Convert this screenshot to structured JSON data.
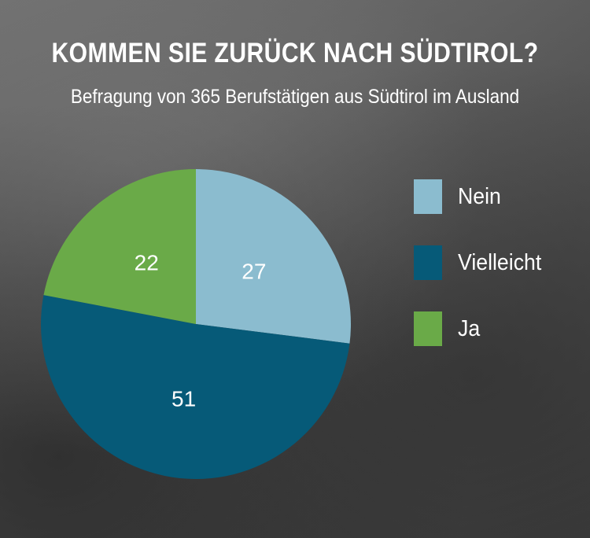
{
  "header": {
    "title": "KOMMEN SIE ZURÜCK NACH SÜDTIROL?",
    "subtitle": "Befragung von 365 Berufstätigen aus Südtirol im Ausland"
  },
  "chart_data": {
    "type": "pie",
    "slices": [
      {
        "label": "Nein",
        "value": 27,
        "color": "#8bbccf"
      },
      {
        "label": "Vielleicht",
        "value": 51,
        "color": "#065a78"
      },
      {
        "label": "Ja",
        "value": 22,
        "color": "#6aaa48"
      }
    ],
    "legend_position": "right",
    "data_label_color": "#ffffff"
  }
}
